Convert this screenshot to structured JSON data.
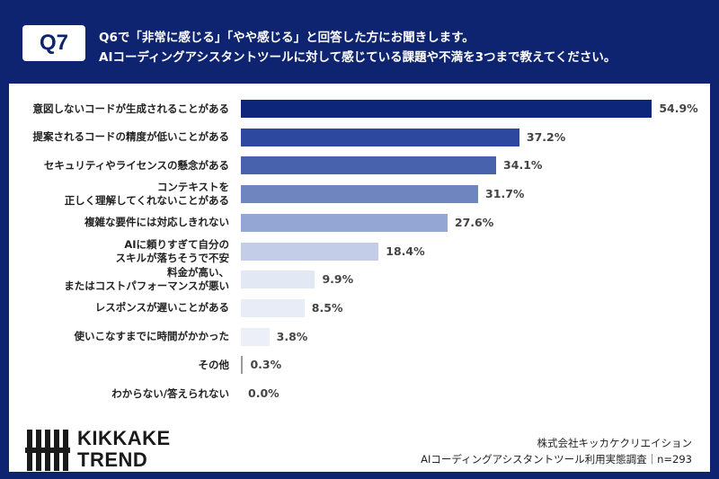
{
  "header": {
    "badge": "Q7",
    "question": [
      "Q6で「非常に感じる」「やや感じる」と回答した方にお聞きします。",
      "AIコーディングアシスタントツールに対して感じている課題や不満を3つまで教えてください。"
    ]
  },
  "chart_data": {
    "type": "bar",
    "orientation": "horizontal",
    "categories": [
      "意図しないコードが生成されることがある",
      "提案されるコードの精度が低いことがある",
      "セキュリティやライセンスの懸念がある",
      "コンテキストを\n正しく理解してくれないことがある",
      "複雑な要件には対応しきれない",
      "AIに頼りすぎて自分の\nスキルが落ちそうで不安",
      "料金が高い、\nまたはコストパフォーマンスが悪い",
      "レスポンスが遅いことがある",
      "使いこなすまでに時間がかかった",
      "その他",
      "わからない/答えられない"
    ],
    "values": [
      54.9,
      37.2,
      34.1,
      31.7,
      27.6,
      18.4,
      9.9,
      8.5,
      3.8,
      0.3,
      0.0
    ],
    "value_labels": [
      "54.9%",
      "37.2%",
      "34.1%",
      "31.7%",
      "27.6%",
      "18.4%",
      "9.9%",
      "8.5%",
      "3.8%",
      "0.3%",
      "0.0%"
    ],
    "colors": [
      "#0e2679",
      "#2c489f",
      "#4962ad",
      "#6f85bf",
      "#94a6d3",
      "#c4cde8",
      "#e3e8f5",
      "#e8ecf7",
      "#eceff8",
      "#9a9a9a",
      "#cccccc"
    ]
  },
  "footer": {
    "logo": [
      "KIKKAKE",
      "TREND"
    ],
    "company": "株式会社キッカケクリエイション",
    "survey": "AIコーディングアシスタントツール利用実態調査｜n=293"
  }
}
